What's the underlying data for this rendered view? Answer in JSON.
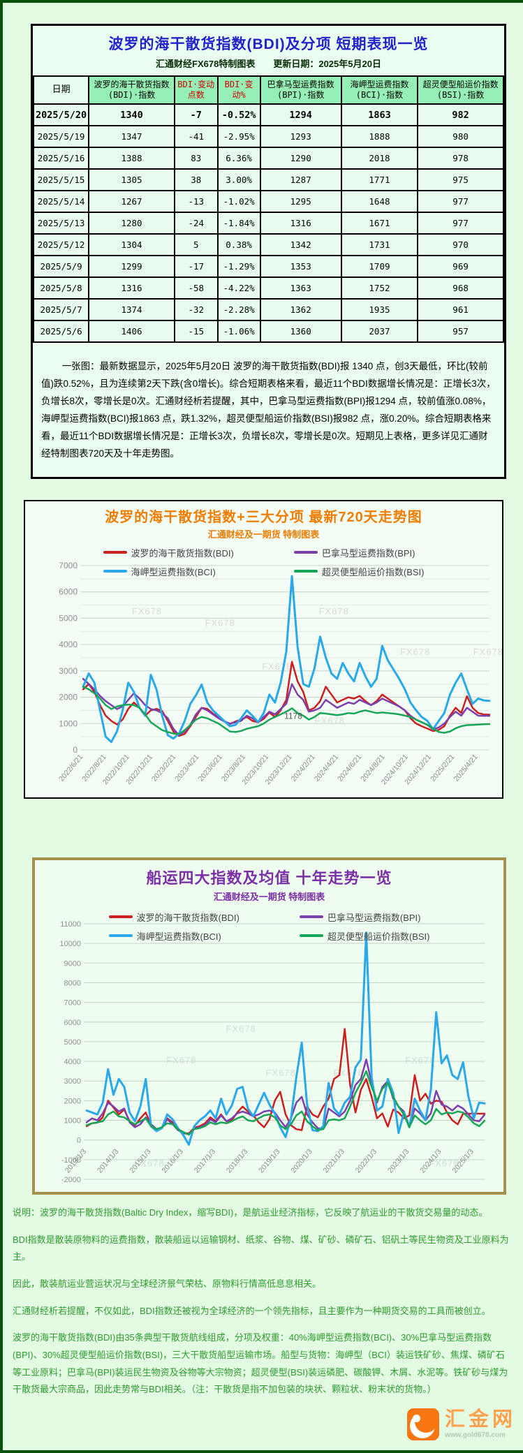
{
  "colors": {
    "title_blue": "#2222cc",
    "header_green": "#96efb4",
    "red_text": "#cc0000",
    "chart1_orange": "#f07d00",
    "chart2_purple": "#7b2fa8",
    "footer_green": "#2e9b2e",
    "bdi": "#cc1f1f",
    "bpi": "#7b3fae",
    "bci": "#29a8ea",
    "bsi": "#17a657"
  },
  "table_section": {
    "title": "波罗的海干散货指数(BDI)及分项  短期表现一览",
    "subtitle": "汇通财经FX678特制图表　　更新日期：2025年5月20日",
    "headers": [
      "日期",
      "波罗的海干散货指数(BDI)·指数",
      "BDI·变动点数",
      "BDI·变动%",
      "巴拿马型运费指数(BPI)·指数",
      "海岬型运费指数(BCI)·指数",
      "超灵便型船运价指数(BSI)·指数"
    ],
    "rows": [
      [
        "2025/5/20",
        "1340",
        "-7",
        "-0.52%",
        "1294",
        "1863",
        "982"
      ],
      [
        "2025/5/19",
        "1347",
        "-41",
        "-2.95%",
        "1293",
        "1888",
        "980"
      ],
      [
        "2025/5/16",
        "1388",
        "83",
        "6.36%",
        "1290",
        "2018",
        "978"
      ],
      [
        "2025/5/15",
        "1305",
        "38",
        "3.00%",
        "1287",
        "1771",
        "975"
      ],
      [
        "2025/5/14",
        "1267",
        "-13",
        "-1.02%",
        "1295",
        "1648",
        "977"
      ],
      [
        "2025/5/13",
        "1280",
        "-24",
        "-1.84%",
        "1316",
        "1671",
        "977"
      ],
      [
        "2025/5/12",
        "1304",
        "5",
        "0.38%",
        "1342",
        "1731",
        "970"
      ],
      [
        "2025/5/9",
        "1299",
        "-17",
        "-1.29%",
        "1353",
        "1709",
        "969"
      ],
      [
        "2025/5/8",
        "1316",
        "-58",
        "-4.22%",
        "1363",
        "1752",
        "968"
      ],
      [
        "2025/5/7",
        "1374",
        "-32",
        "-2.28%",
        "1362",
        "1935",
        "961"
      ],
      [
        "2025/5/6",
        "1406",
        "-15",
        "-1.06%",
        "1360",
        "2037",
        "957"
      ]
    ],
    "note": "一张图：最新数据显示，2025年5月20日 波罗的海干散货指数(BDI)报 1340 点，创3天最低，环比(较前值)跌0.52%，且为连续第2天下跌(含0增长)。综合短期表格来看，最近11个BDI数据增长情况是：正增长3次，负增长8次，零增长是0次。汇通财经析若提醒，其中，巴拿马型运费指数(BPI)报1294 点，较前值涨0.08%，海岬型运费指数(BCI)报1863 点，跌1.32%，超灵便型船运价指数(BSI)报982 点，涨0.20%。综合短期表格来看，最近11个BDI数据增长情况是：正增长3次，负增长8次，零增长是0次。短期见上表格，更多详见汇通财经特制图表720天及十年走势图。"
  },
  "chart_data": [
    {
      "type": "line",
      "title": "波罗的海干散货指数+三大分项  最新720天走势图",
      "subtitle": "汇通财经及一期货  特制图表",
      "watermark": "FX678",
      "ylim": [
        0,
        7000
      ],
      "ytick_step": 1000,
      "legend_position": "top-inside",
      "grid": true,
      "x_tick_labels": [
        "2022/6/21",
        "2022/8/21",
        "2022/10/21",
        "2022/12/21",
        "2023/2/21",
        "2023/4/21",
        "2023/6/21",
        "2023/8/21",
        "2023/10/21",
        "2023/12/21",
        "2024/2/21",
        "2024/4/21",
        "2024/6/21",
        "2024/8/21",
        "2024/10/21",
        "2024/12/21",
        "2025/2/21",
        "2025/4/21"
      ],
      "annotations": [
        {
          "text": "1178",
          "fx": 0.495,
          "v": 1178
        }
      ],
      "series": [
        {
          "name": "波罗的海干散货指数(BDI)",
          "color": "#cc1f1f",
          "values": [
            2300,
            2500,
            2200,
            1700,
            1300,
            1100,
            965,
            1150,
            1560,
            1800,
            1600,
            1300,
            1500,
            1560,
            1480,
            1100,
            700,
            530,
            605,
            900,
            1260,
            1600,
            1560,
            1380,
            1240,
            1100,
            980,
            1080,
            1150,
            1250,
            1100,
            1050,
            1180,
            1420,
            1250,
            1500,
            1900,
            3346,
            2600,
            2200,
            1500,
            1600,
            1850,
            2400,
            2100,
            1800,
            1900,
            2000,
            1950,
            2050,
            1850,
            1700,
            1850,
            2100,
            1950,
            1800,
            1650,
            1500,
            1200,
            1000,
            900,
            810,
            715,
            760,
            900,
            1300,
            1600,
            1400,
            2040,
            1600,
            1400,
            1347,
            1340
          ]
        },
        {
          "name": "巴拿马型运费指数(BPI)",
          "color": "#7b3fae",
          "values": [
            2700,
            2500,
            2300,
            2050,
            1850,
            1700,
            1550,
            1650,
            1900,
            2150,
            1950,
            1700,
            1550,
            1500,
            1400,
            1200,
            800,
            560,
            700,
            950,
            1350,
            1600,
            1500,
            1350,
            1200,
            1080,
            1000,
            1050,
            1100,
            1300,
            1200,
            1050,
            1250,
            1450,
            1350,
            1550,
            1750,
            2500,
            2100,
            1900,
            1450,
            1500,
            1600,
            1900,
            1750,
            1600,
            1700,
            1800,
            1750,
            1900,
            1800,
            1700,
            1800,
            1950,
            1850,
            1750,
            1650,
            1500,
            1300,
            1150,
            1050,
            950,
            780,
            850,
            1000,
            1250,
            1450,
            1300,
            1600,
            1450,
            1300,
            1290,
            1294
          ]
        },
        {
          "name": "海岬型运费指数(BCI)",
          "color": "#29a8ea",
          "values": [
            2400,
            2900,
            2550,
            1500,
            500,
            300,
            700,
            1500,
            2550,
            2200,
            1600,
            1300,
            2850,
            2300,
            1300,
            560,
            430,
            620,
            1100,
            1750,
            2080,
            2480,
            1800,
            1500,
            1300,
            1100,
            900,
            950,
            1200,
            1500,
            1300,
            1050,
            1400,
            2100,
            1800,
            2550,
            3730,
            6600,
            3900,
            2500,
            2400,
            3100,
            4300,
            3500,
            2900,
            2700,
            3300,
            2900,
            2600,
            3300,
            2800,
            2400,
            2700,
            3950,
            3400,
            3050,
            2700,
            2300,
            1800,
            1500,
            1250,
            1100,
            780,
            1100,
            1400,
            2100,
            2550,
            2900,
            2300,
            1750,
            1950,
            1880,
            1863
          ]
        },
        {
          "name": "超灵便型船运价指数(BSI)",
          "color": "#17a657",
          "values": [
            2400,
            2300,
            2150,
            1950,
            1700,
            1550,
            1650,
            1700,
            1720,
            1700,
            1600,
            1350,
            1050,
            900,
            750,
            680,
            620,
            600,
            750,
            950,
            1150,
            1250,
            1200,
            1100,
            1000,
            850,
            700,
            680,
            720,
            800,
            850,
            900,
            1000,
            1150,
            1250,
            1350,
            1450,
            1580,
            1400,
            1300,
            1150,
            1250,
            1400,
            1380,
            1350,
            1320,
            1350,
            1400,
            1380,
            1450,
            1500,
            1450,
            1400,
            1420,
            1400,
            1380,
            1350,
            1300,
            1250,
            1150,
            1050,
            950,
            820,
            680,
            650,
            700,
            820,
            900,
            940,
            950,
            960,
            975,
            982
          ]
        }
      ]
    },
    {
      "type": "line",
      "title": "船运四大指数及均值 十年走势一览",
      "subtitle": "汇通财经及一期货 特制图表",
      "watermark": "FX678",
      "ylim": [
        -2000,
        11000
      ],
      "ytick_step": 1000,
      "legend_position": "top-inside",
      "grid": true,
      "x_tick_labels": [
        "2013/1/3",
        "2014/1/3",
        "2015/1/3",
        "2016/1/3",
        "2017/1/3",
        "2018/1/3",
        "2019/1/3",
        "2020/1/3",
        "2021/1/3",
        "2022/1/3",
        "2023/1/3",
        "2024/1/3",
        "2025/1/3"
      ],
      "annotations": [],
      "series": [
        {
          "name": "波罗的海干散货指数(BDI)",
          "color": "#cc1f1f",
          "values": [
            700,
            850,
            880,
            1150,
            2000,
            1650,
            1300,
            1550,
            950,
            750,
            1100,
            1400,
            750,
            560,
            600,
            1100,
            900,
            550,
            360,
            330,
            620,
            700,
            850,
            1150,
            950,
            1300,
            950,
            1000,
            1400,
            1700,
            1450,
            1250,
            900,
            650,
            1050,
            2000,
            2450,
            1300,
            750,
            550,
            500,
            1700,
            1300,
            1150,
            1700,
            2100,
            3100,
            3300,
            5650,
            2800,
            1400,
            2550,
            3100,
            2200,
            1100,
            1350,
            680,
            1550,
            1400,
            1100,
            1250,
            3300,
            2000,
            2350,
            1850,
            2000,
            1950,
            1400,
            1000,
            800,
            1340,
            1340,
            1340,
            1340,
            1340
          ]
        },
        {
          "name": "巴拿马型运费指数(BPI)",
          "color": "#7b3fae",
          "values": [
            900,
            1100,
            1000,
            1350,
            1900,
            1700,
            1450,
            1600,
            900,
            650,
            800,
            1150,
            800,
            550,
            620,
            1050,
            800,
            500,
            350,
            290,
            580,
            650,
            750,
            1050,
            900,
            1250,
            950,
            1100,
            1350,
            1450,
            1350,
            1200,
            1300,
            1450,
            1500,
            1400,
            1000,
            650,
            1100,
            1900,
            2200,
            1300,
            900,
            600,
            550,
            1600,
            1400,
            1200,
            1450,
            2000,
            2800,
            3100,
            4100,
            2900,
            1900,
            2700,
            3000,
            2100,
            1700,
            1450,
            700,
            1600,
            1350,
            1000,
            1350,
            2500,
            1800,
            1700,
            1500,
            1750,
            1600,
            1300,
            1000,
            950,
            1294
          ]
        },
        {
          "name": "海岬型运费指数(BCI)",
          "color": "#29a8ea",
          "values": [
            1500,
            1400,
            1300,
            1900,
            3600,
            2300,
            3100,
            2700,
            1400,
            950,
            1700,
            3100,
            700,
            450,
            600,
            1300,
            1050,
            600,
            250,
            -240,
            700,
            1000,
            1200,
            1500,
            1100,
            2100,
            1300,
            1750,
            2600,
            2700,
            1600,
            1200,
            1800,
            2400,
            1800,
            1350,
            650,
            150,
            1100,
            3200,
            4950,
            1800,
            500,
            450,
            700,
            2900,
            1600,
            1300,
            1900,
            2200,
            3700,
            4100,
            10550,
            3200,
            1500,
            1700,
            3100,
            2400,
            350,
            1400,
            650,
            2100,
            1500,
            1000,
            2550,
            6500,
            3900,
            4300,
            3300,
            3100,
            3950,
            2200,
            1100,
            1900,
            1863
          ]
        },
        {
          "name": "超灵便型船运价指数(BSI)",
          "color": "#17a657",
          "values": [
            750,
            850,
            900,
            950,
            1300,
            1450,
            1200,
            1150,
            950,
            800,
            950,
            1100,
            700,
            550,
            650,
            850,
            800,
            550,
            400,
            270,
            550,
            600,
            700,
            900,
            800,
            900,
            850,
            950,
            1100,
            1200,
            1000,
            950,
            1100,
            1250,
            1300,
            1150,
            750,
            550,
            800,
            1250,
            1450,
            950,
            700,
            500,
            550,
            1000,
            1050,
            1000,
            1100,
            1700,
            2400,
            2900,
            3500,
            2700,
            2000,
            2600,
            2900,
            2200,
            1700,
            1300,
            650,
            1250,
            1000,
            800,
            1000,
            1580,
            1300,
            1400,
            1350,
            1450,
            1400,
            1150,
            850,
            700,
            982
          ]
        }
      ]
    }
  ],
  "footer": {
    "lines": [
      "说明：波罗的海干散货指数(Baltic Dry Index，缩写BDI)，是航运业经济指标，它反映了航运业的干散货交易量的动态。",
      "BDI指数是散装原物料的运费指数，散装船运以运输钢材、纸浆、谷物、煤、矿砂、磷矿石、铝矾土等民生物资及工业原料为主。",
      "因此，散装航运业营运状况与全球经济景气荣枯、原物料行情高低息息相关。",
      "汇通财经析若提醒，不仅如此，BDI指数还被视为全球经济的一个领先指标，且主要作为一种期货交易的工具而被创立。",
      "波罗的海干散货指数(BDI)由35条典型干散货航线组成，分项及权重：40%海岬型运费指数(BCI)、30%巴拿马型运费指数(BPI)、30%超灵便型船运价指数(BSI)，三大干散货船型运输市场。船型与货物：海岬型（BCI）装运铁矿砂、焦煤、磷矿石等工业原料；巴拿马(BPI)装运民生物资及谷物等大宗物资；超灵便型(BSI)装运磷肥、碳酸钾、木屑、水泥等。铁矿砂与煤为干散货最大宗商品，因此走势常与BDI相关。（注：干散货是指不加包装的块状、颗粒状、粉末状的货物。）"
    ],
    "logo": {
      "name": "汇金网",
      "url": "www.gold678.com"
    }
  }
}
